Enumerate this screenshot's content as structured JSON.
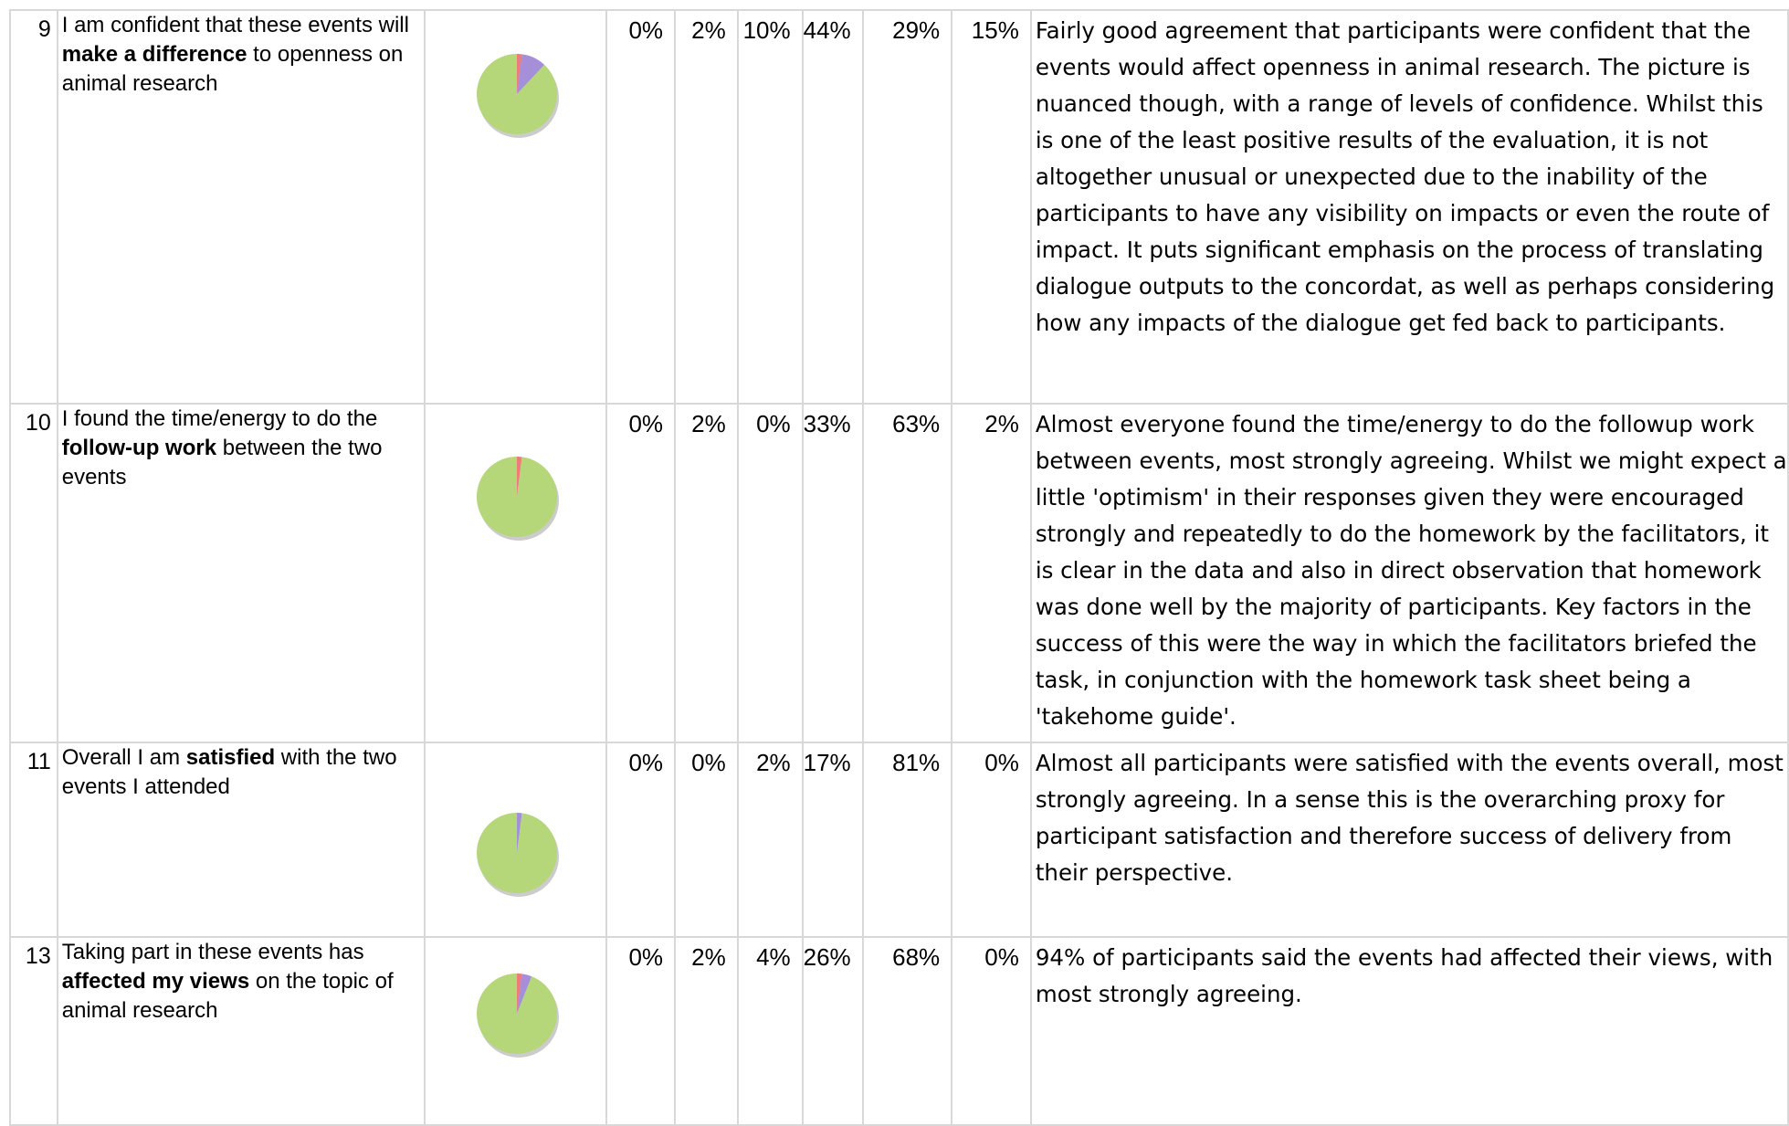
{
  "table": {
    "rows": [
      {
        "number": "9",
        "question": {
          "before": "I am confident that these events will ",
          "bold": "make a difference",
          "after": " to openness on animal research"
        },
        "percentages": [
          "0%",
          "2%",
          "10%",
          "44%",
          "29%",
          "15%"
        ],
        "comment": "Fairly good agreement that participants were confident that the events would affect openness in animal research. The picture is nuanced though, with a range of levels of confidence. Whilst this is one of the least positive results of the evaluation, it is not altogether unusual or unexpected due to the inability of the participants to have any visibility on impacts or even the route of impact.  It puts significant emphasis on the process of translating dialogue outputs to the concordat, as well as perhaps considering how any impacts of the dialogue get fed back to participants."
      },
      {
        "number": "10",
        "question": {
          "before": "I found the time/energy to do the ",
          "bold": "follow-up work",
          "after": " between the two events"
        },
        "percentages": [
          "0%",
          "2%",
          "0%",
          "33%",
          "63%",
          "2%"
        ],
        "comment": "Almost everyone found the time/energy to do the followup work between events, most strongly agreeing.  Whilst we might expect a little 'optimism' in their responses given they were encouraged strongly and repeatedly to do the homework by the facilitators, it is clear in the data and also in direct observation that homework was done well by the majority of participants.  Key factors in the success of this were the way in which the facilitators briefed the task, in conjunction with the homework task sheet being a 'takehome guide'."
      },
      {
        "number": "11",
        "question": {
          "before": "Overall I am ",
          "bold": "satisfied",
          "after": " with the two events I attended"
        },
        "percentages": [
          "0%",
          "0%",
          "2%",
          "17%",
          "81%",
          "0%"
        ],
        "comment": "Almost all participants were satisfied with the events overall, most strongly agreeing.  In a sense this is the overarching proxy for participant satisfaction and therefore success of delivery from their perspective."
      },
      {
        "number": "13",
        "question": {
          "before": "Taking part in these events has ",
          "bold": "affected my views",
          "after": " on the topic of animal research"
        },
        "percentages": [
          "0%",
          "2%",
          "4%",
          "26%",
          "68%",
          "0%"
        ],
        "comment": "94% of participants said the events had affected their views, with most strongly agreeing."
      }
    ]
  }
}
